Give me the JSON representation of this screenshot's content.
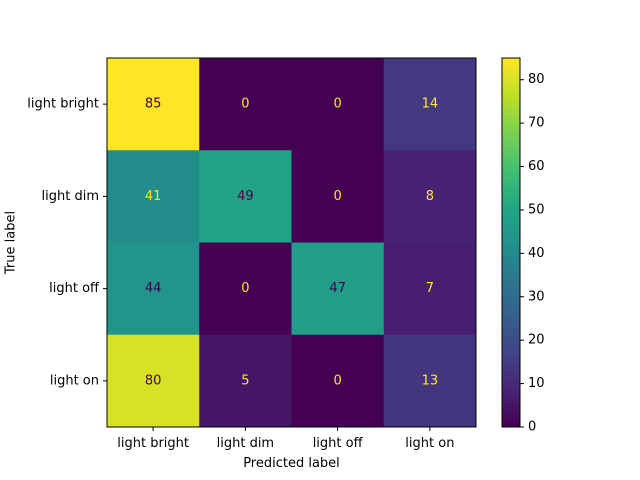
{
  "chart_data": {
    "type": "heatmap",
    "title": "",
    "xlabel": "Predicted label",
    "ylabel": "True label",
    "x_categories": [
      "light bright",
      "light dim",
      "light off",
      "light on"
    ],
    "y_categories": [
      "light bright",
      "light dim",
      "light off",
      "light on"
    ],
    "matrix": [
      [
        85,
        0,
        0,
        14
      ],
      [
        41,
        49,
        0,
        8
      ],
      [
        44,
        0,
        47,
        7
      ],
      [
        80,
        5,
        0,
        13
      ]
    ],
    "colormap": "viridis",
    "vmin": 0,
    "vmax": 85,
    "colorbar_ticks": [
      0,
      10,
      20,
      30,
      40,
      50,
      60,
      70,
      80
    ],
    "colors": {
      "low_text": "#fde725",
      "high_text": "#440154"
    }
  }
}
